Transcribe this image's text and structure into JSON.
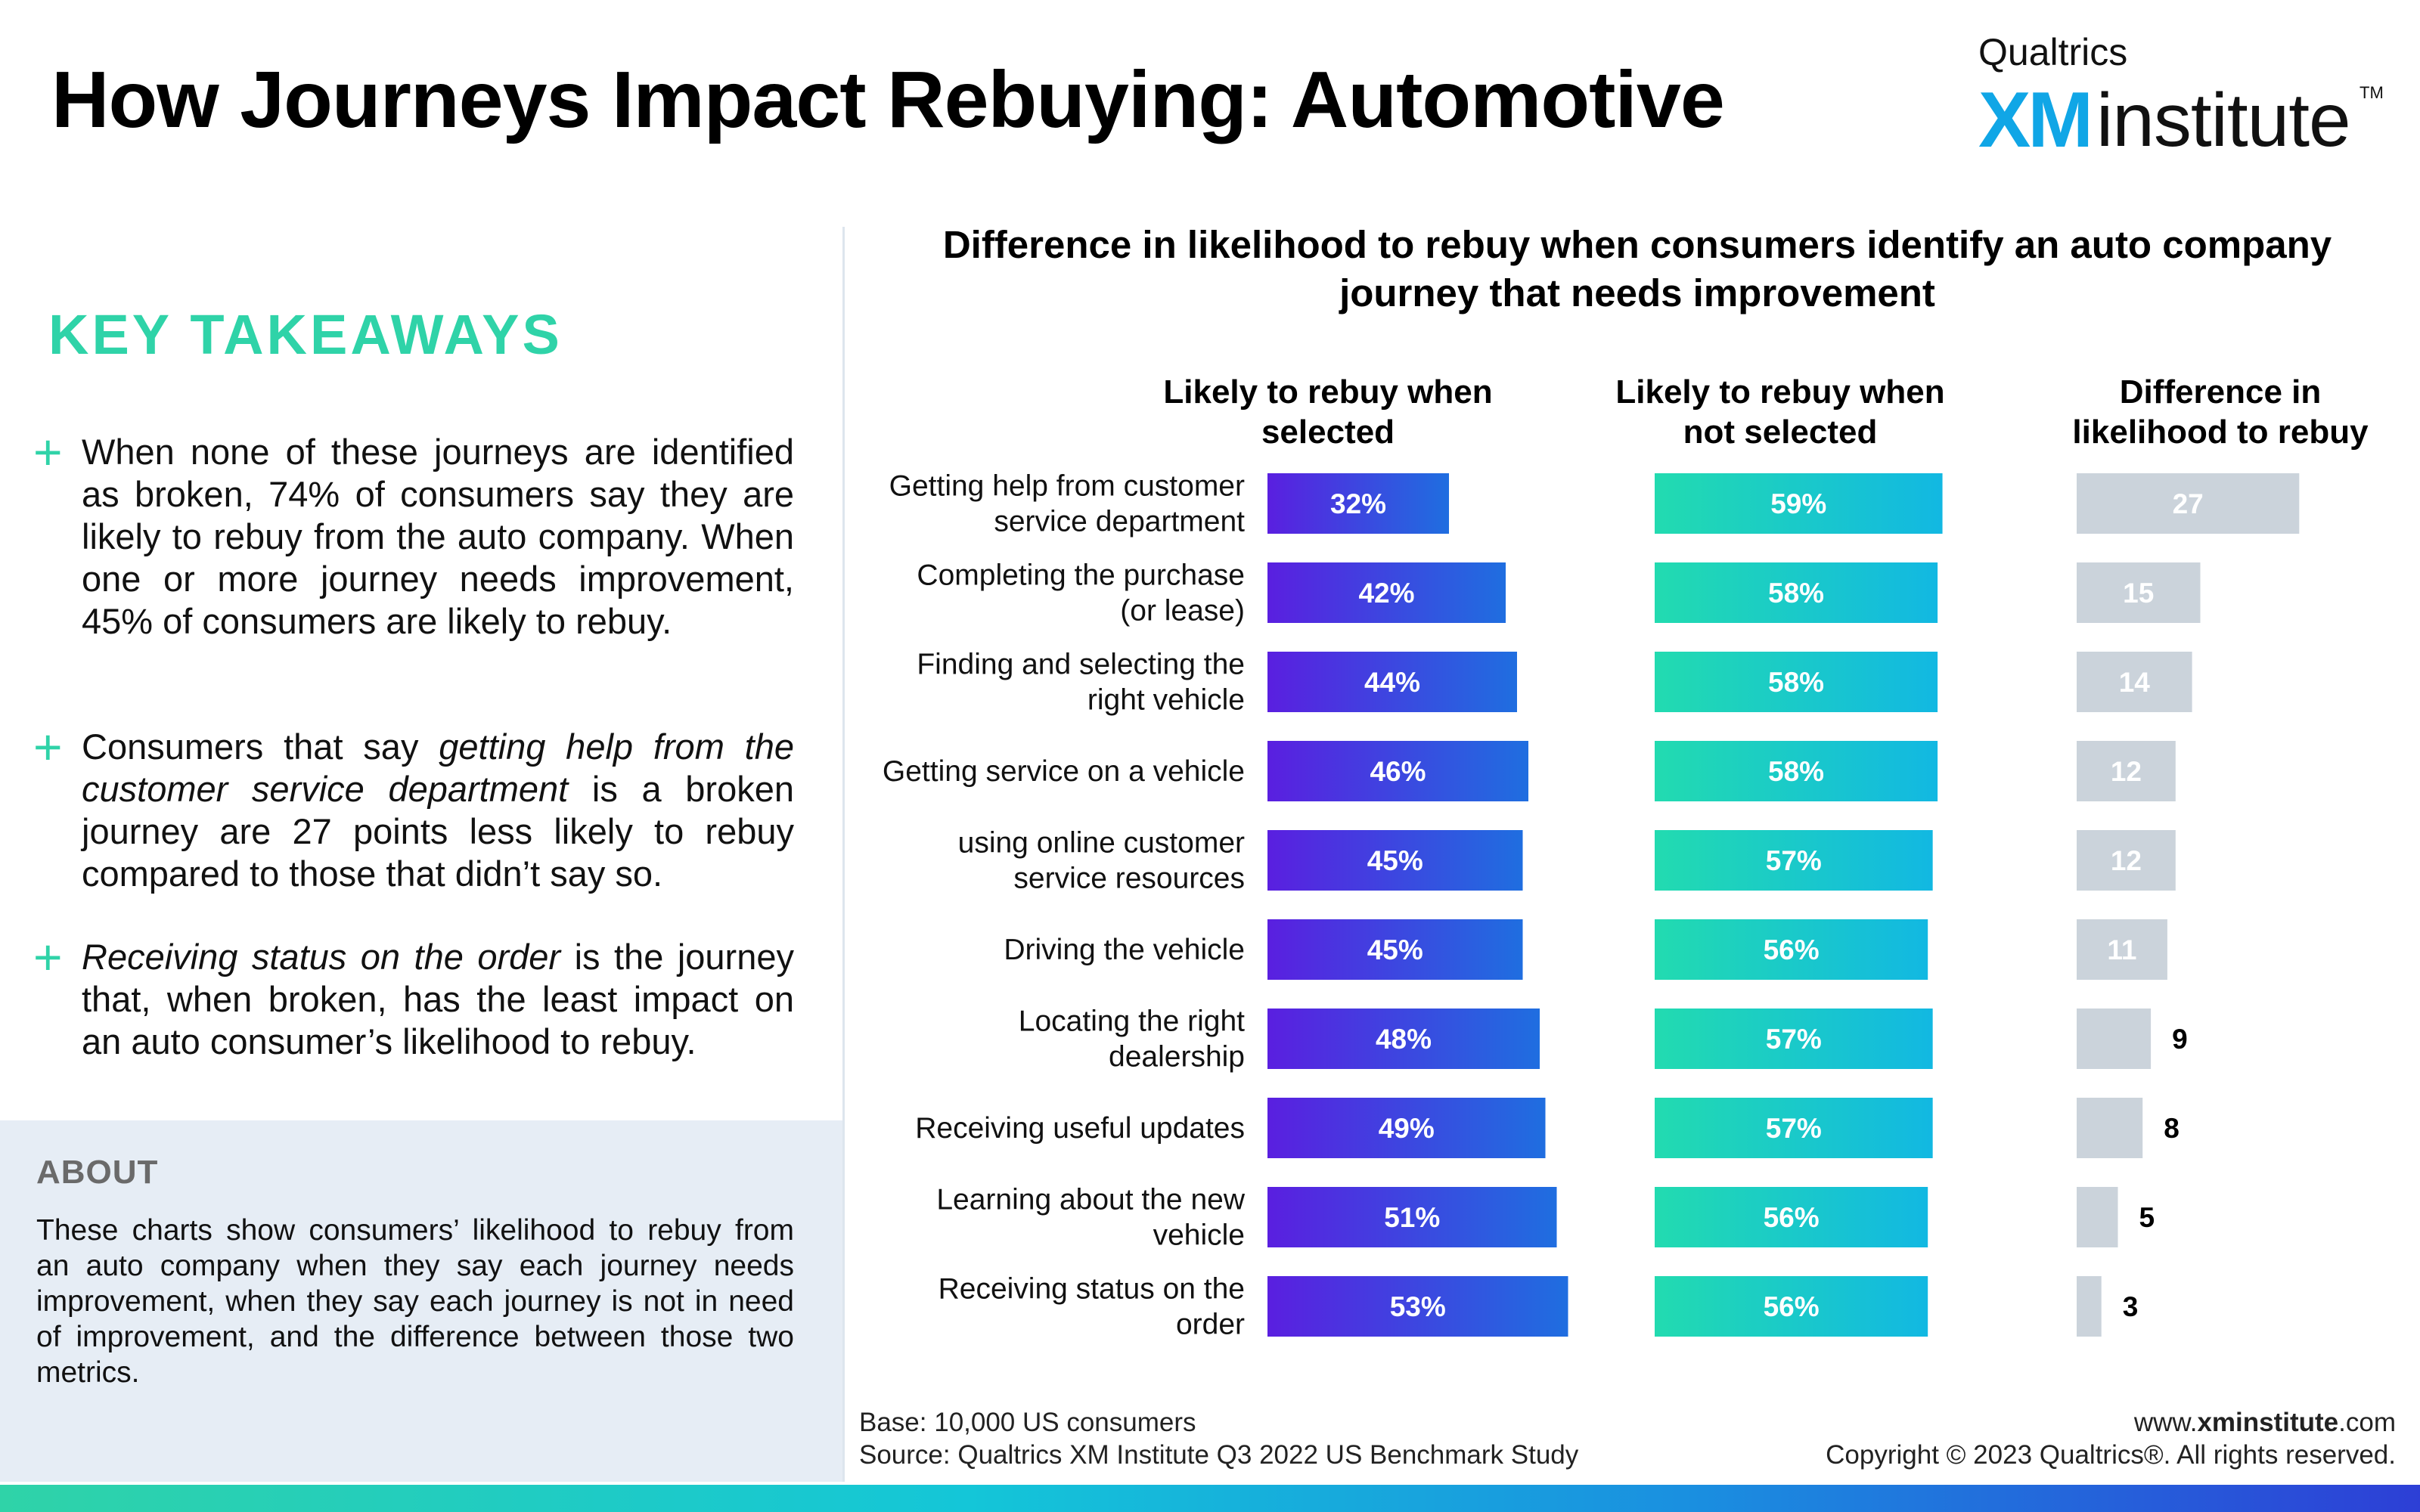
{
  "header": {
    "title": "How Journeys Impact Rebuying: Automotive",
    "logo_small": "Qualtrics",
    "logo_xm": "XM",
    "logo_word": "institute",
    "logo_tm": "TM"
  },
  "takeaways": {
    "heading": "KEY TAKEAWAYS",
    "bullets": [
      {
        "parts": [
          {
            "text": "When none of these journeys are identified as broken, 74% of consumers say they are likely to rebuy from the auto company. When one or more journey needs improvement, 45% of consumers are likely to rebuy.",
            "italic": false
          }
        ]
      },
      {
        "parts": [
          {
            "text": "Consumers that say ",
            "italic": false
          },
          {
            "text": "getting help from the customer service department",
            "italic": true
          },
          {
            "text": " is a broken journey are 27 points less likely to rebuy compared to those that didn’t say so.",
            "italic": false
          }
        ]
      },
      {
        "parts": [
          {
            "text": "Receiving status on the order",
            "italic": true
          },
          {
            "text": " is the journey that, when broken, has the least impact on an auto consumer’s likelihood to rebuy.",
            "italic": false
          }
        ]
      }
    ]
  },
  "about": {
    "heading": "ABOUT",
    "text": "These charts show consumers’ likelihood to rebuy from an auto company when they say each journey needs improvement, when they say each journey is not in need of improvement, and the difference between those two metrics."
  },
  "chart_data": {
    "type": "bar",
    "title": "Difference in likelihood to rebuy when consumers identify an auto company journey that needs improvement",
    "orientation": "horizontal",
    "categories": [
      [
        "Getting help from customer",
        "service department"
      ],
      [
        "Completing the purchase",
        "(or lease)"
      ],
      [
        "Finding and selecting the",
        "right vehicle"
      ],
      [
        "Getting service on a vehicle"
      ],
      [
        "using online customer",
        "service resources"
      ],
      [
        "Driving the vehicle"
      ],
      [
        "Locating the right",
        "dealership"
      ],
      [
        "Receiving useful updates"
      ],
      [
        "Learning about the new",
        "vehicle"
      ],
      [
        "Receiving status on the",
        "order"
      ]
    ],
    "series": [
      {
        "name": "Likely to rebuy when selected",
        "values": [
          32,
          42,
          44,
          46,
          45,
          45,
          48,
          49,
          51,
          53
        ],
        "unit": "%",
        "color_start": "#5a1fe0",
        "color_end": "#1f6ee0"
      },
      {
        "name": "Likely to rebuy when not selected",
        "values": [
          59,
          58,
          58,
          58,
          57,
          56,
          57,
          57,
          56,
          56
        ],
        "unit": "%",
        "color_start": "#22dbb0",
        "color_end": "#12b8e2"
      },
      {
        "name": "Difference in likelihood to rebuy",
        "values": [
          27,
          15,
          14,
          12,
          12,
          11,
          9,
          8,
          5,
          3
        ],
        "unit": "",
        "color": "#cbd3db"
      }
    ],
    "column_headers": [
      [
        "Likely to rebuy when",
        "selected"
      ],
      [
        "Likely to rebuy when",
        "not selected"
      ],
      [
        "Difference in",
        "likelihood to rebuy"
      ]
    ],
    "grid": false
  },
  "footer": {
    "base": "Base: 10,000 US consumers",
    "source": "Source: Qualtrics XM Institute Q3 2022 US Benchmark Study",
    "url_prefix": "www.",
    "url_bold": "xminstitute",
    "url_suffix": ".com",
    "copyright": "Copyright © 2023 Qualtrics®. All rights reserved."
  }
}
